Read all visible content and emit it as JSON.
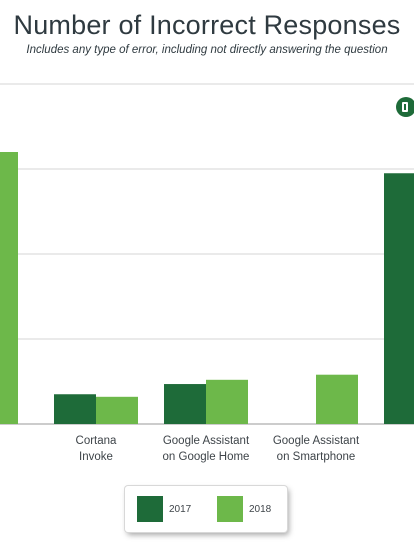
{
  "chart_data": {
    "type": "bar",
    "title": "Number of Incorrect Responses",
    "subtitle": "Includes any type of error, including not directly answering the question",
    "categories": [
      "",
      "Cortana\nInvoke",
      "Google Assistant\non Google Home",
      "Google Assistant\non Smartphone",
      ""
    ],
    "series": [
      {
        "name": "2017",
        "color": "#1e6b39",
        "values": [
          null,
          35,
          47,
          0,
          295
        ]
      },
      {
        "name": "2018",
        "color": "#6db84a",
        "values": [
          320,
          32,
          52,
          58,
          null
        ]
      }
    ],
    "ylim": [
      0,
      400
    ],
    "grid": true,
    "legend_position": "bottom"
  }
}
